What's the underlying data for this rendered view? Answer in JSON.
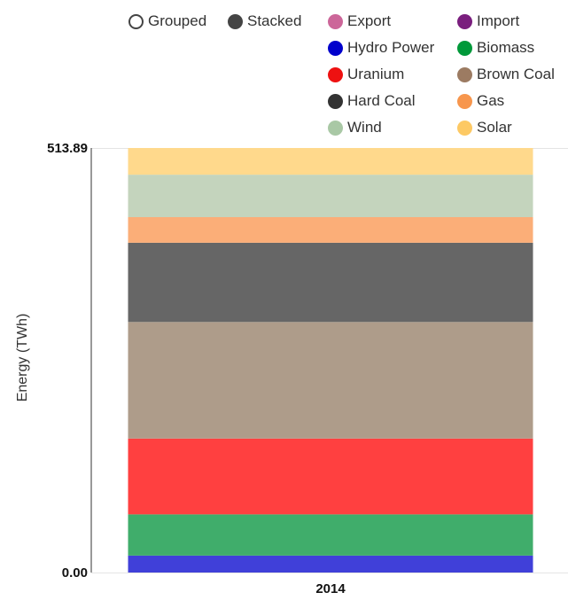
{
  "legend": {
    "mode_options": [
      {
        "label": "Grouped",
        "selected": false,
        "icon": "radio-empty"
      },
      {
        "label": "Stacked",
        "selected": true,
        "icon": "radio-filled"
      }
    ],
    "items": [
      {
        "label": "Export",
        "color": "#cc6699"
      },
      {
        "label": "Import",
        "color": "#7a1e7e"
      },
      {
        "label": "Hydro Power",
        "color": "#0000cc"
      },
      {
        "label": "Biomass",
        "color": "#00993a"
      },
      {
        "label": "Uranium",
        "color": "#ee1111"
      },
      {
        "label": "Brown Coal",
        "color": "#9c7b62"
      },
      {
        "label": "Hard Coal",
        "color": "#333333"
      },
      {
        "label": "Gas",
        "color": "#f7964d"
      },
      {
        "label": "Wind",
        "color": "#a9c8a5"
      },
      {
        "label": "Solar",
        "color": "#fdc964"
      }
    ]
  },
  "chart_data": {
    "type": "bar",
    "stacked": true,
    "categories": [
      "2014"
    ],
    "ylabel": "Energy (TWh)",
    "ylim": [
      0,
      513.89
    ],
    "yticks": [
      "0.00",
      "513.89"
    ],
    "series": [
      {
        "name": "Hydro Power",
        "values": [
          20.5
        ],
        "color": "#4040d9"
      },
      {
        "name": "Biomass",
        "values": [
          49.9
        ],
        "color": "#40ad6b"
      },
      {
        "name": "Uranium",
        "values": [
          91.8
        ],
        "color": "#ff4040"
      },
      {
        "name": "Brown Coal",
        "values": [
          141.1
        ],
        "color": "#ae9c8a"
      },
      {
        "name": "Hard Coal",
        "values": [
          95.9
        ],
        "color": "#666666"
      },
      {
        "name": "Gas",
        "values": [
          31.0
        ],
        "color": "#fbae78"
      },
      {
        "name": "Wind",
        "values": [
          51.4
        ],
        "color": "#c4d4bd"
      },
      {
        "name": "Solar",
        "values": [
          32.3
        ],
        "color": "#ffd98c"
      }
    ]
  }
}
